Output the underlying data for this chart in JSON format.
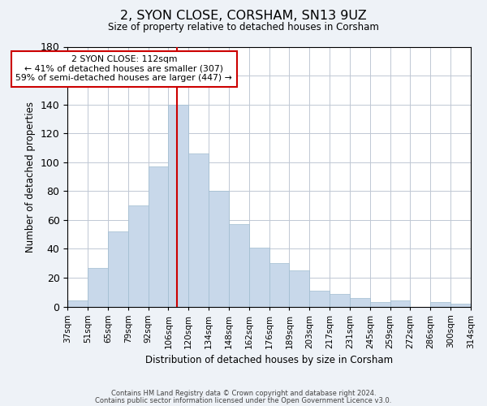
{
  "title": "2, SYON CLOSE, CORSHAM, SN13 9UZ",
  "subtitle": "Size of property relative to detached houses in Corsham",
  "xlabel": "Distribution of detached houses by size in Corsham",
  "ylabel": "Number of detached properties",
  "bar_labels": [
    "37sqm",
    "51sqm",
    "65sqm",
    "79sqm",
    "92sqm",
    "106sqm",
    "120sqm",
    "134sqm",
    "148sqm",
    "162sqm",
    "176sqm",
    "189sqm",
    "203sqm",
    "217sqm",
    "231sqm",
    "245sqm",
    "259sqm",
    "272sqm",
    "286sqm",
    "300sqm",
    "314sqm"
  ],
  "bar_values": [
    4,
    27,
    52,
    70,
    97,
    140,
    106,
    80,
    57,
    41,
    30,
    25,
    11,
    9,
    6,
    3,
    4,
    0,
    3,
    2
  ],
  "bar_color": "#c8d8ea",
  "bar_edge_color": "#a0bcd0",
  "vline_color": "#cc0000",
  "annotation_title": "2 SYON CLOSE: 112sqm",
  "annotation_line1": "← 41% of detached houses are smaller (307)",
  "annotation_line2": "59% of semi-detached houses are larger (447) →",
  "annotation_box_color": "#ffffff",
  "annotation_box_edge": "#cc0000",
  "ylim": [
    0,
    180
  ],
  "footnote1": "Contains HM Land Registry data © Crown copyright and database right 2024.",
  "footnote2": "Contains public sector information licensed under the Open Government Licence v3.0.",
  "bg_color": "#eef2f7",
  "plot_bg_color": "#ffffff"
}
